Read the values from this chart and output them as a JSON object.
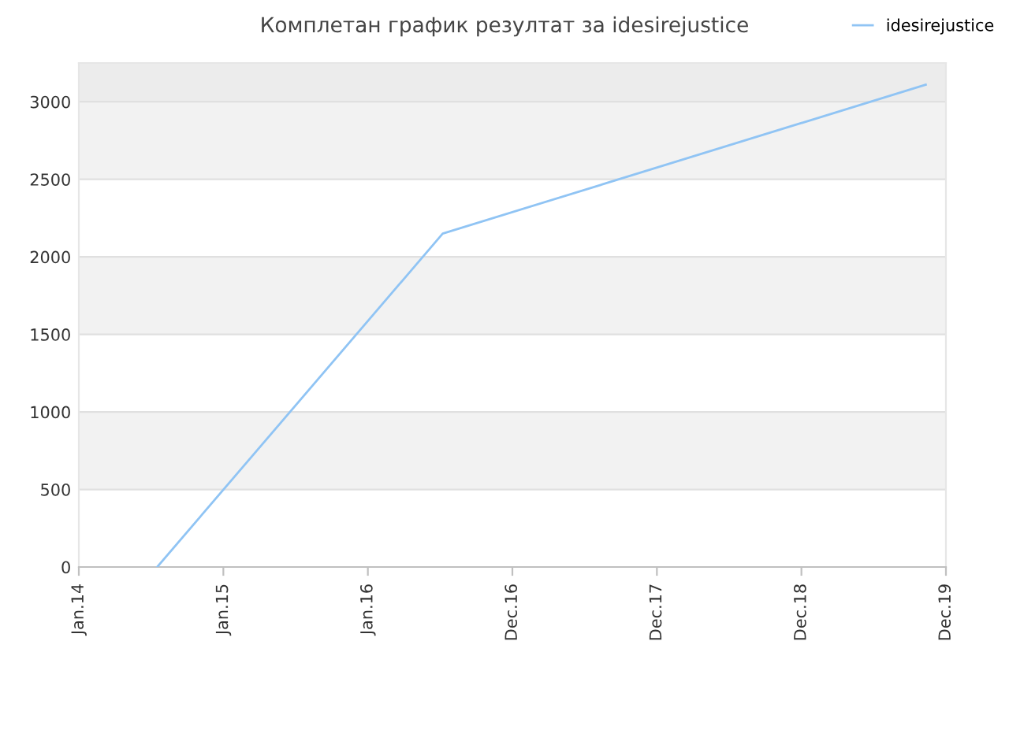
{
  "chart_data": {
    "type": "line",
    "title": "Комплетан график резултат за idesirejustice",
    "series": [
      {
        "name": "idesirejustice",
        "color": "#90c4f4",
        "x": [
          "2014-07-18",
          "2016-07-08",
          "2019-11-10"
        ],
        "values": [
          0,
          2150,
          3110
        ]
      }
    ],
    "xlim": [
      "2014-01-01",
      "2019-12-31"
    ],
    "xticks": [
      {
        "value": "2014-01-01",
        "label": "Jan.14"
      },
      {
        "value": "2015-01-01",
        "label": "Jan.15"
      },
      {
        "value": "2016-01-01",
        "label": "Jan.16"
      },
      {
        "value": "2016-12-31",
        "label": "Dec.16"
      },
      {
        "value": "2017-12-31",
        "label": "Dec.17"
      },
      {
        "value": "2018-12-31",
        "label": "Dec.18"
      },
      {
        "value": "2019-12-31",
        "label": "Dec.19"
      }
    ],
    "ylim": [
      0,
      3250
    ],
    "yticks": [
      0,
      500,
      1000,
      1500,
      2000,
      2500,
      3000
    ],
    "bands": [
      {
        "axis": "y",
        "from": 500,
        "to": 1000,
        "color": "#f2f2f2"
      },
      {
        "axis": "y",
        "from": 1500,
        "to": 2000,
        "color": "#f2f2f2"
      },
      {
        "axis": "y",
        "from": 2500,
        "to": 3000,
        "color": "#f2f2f2"
      },
      {
        "axis": "y",
        "from": 3000,
        "to": 3250,
        "color": "#ececec"
      }
    ],
    "grid": "y",
    "legend": "top right",
    "marker": "none",
    "line_style": "solid"
  }
}
